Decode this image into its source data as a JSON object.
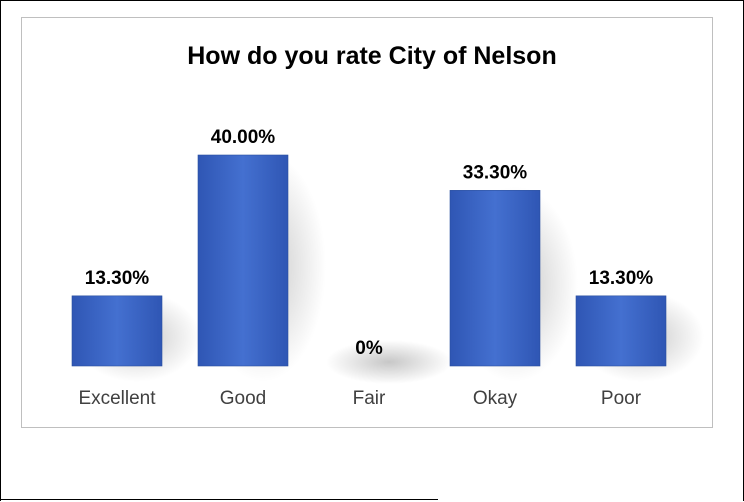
{
  "chart_data": {
    "type": "bar",
    "title": "How do you rate City of Nelson",
    "categories": [
      "Excellent",
      "Good",
      "Fair",
      "Okay",
      "Poor"
    ],
    "values": [
      13.3,
      40.0,
      0,
      33.3,
      13.3
    ],
    "data_labels": [
      "13.30%",
      "40.00%",
      "0%",
      "33.30%",
      "13.30%"
    ],
    "xlabel": "",
    "ylabel": "",
    "ylim": [
      0,
      45
    ],
    "grid": false,
    "legend": "none",
    "bar_color": "#3a62c0"
  }
}
